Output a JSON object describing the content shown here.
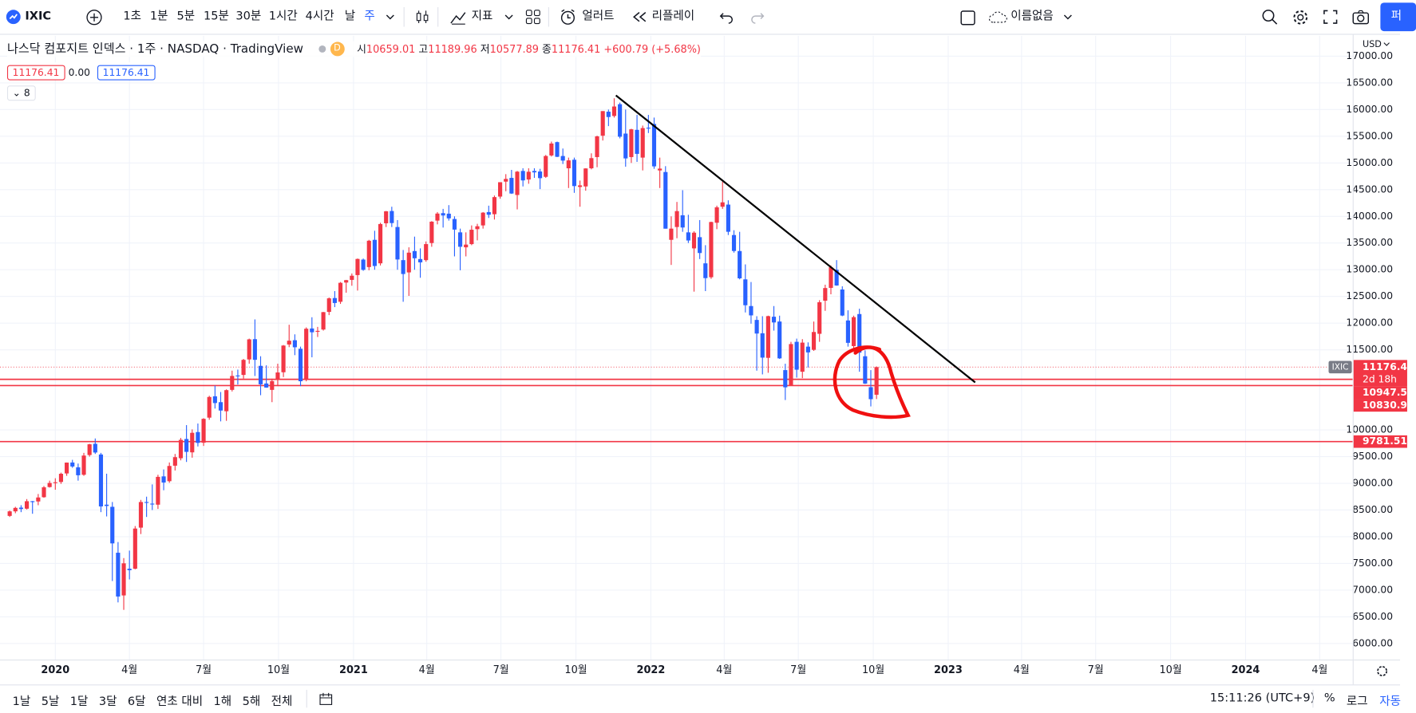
{
  "toolbar": {
    "symbol": "IXIC",
    "intervals": [
      "1초",
      "1분",
      "5분",
      "15분",
      "30분",
      "1시간",
      "4시간",
      "날",
      "주"
    ],
    "indicators": "지표",
    "alerts": "얼러트",
    "replay": "리플레이",
    "layout_name": "이름없음",
    "publish": "퍼"
  },
  "legend": {
    "title": "나스닥 컴포지트 인덱스 · 1주 · NASDAQ · TradingView",
    "badge": "D",
    "ohlc_labels": [
      "시",
      "고",
      "저",
      "종"
    ],
    "change": "+600.79 (+5.68%)",
    "bid": "11176.41",
    "spread": "0.00",
    "ask": "11176.41",
    "indicator_count": "8"
  },
  "chart_data": {
    "type": "candlestick",
    "up_color": "#f23645",
    "down_color": "#2962ff",
    "ohlc": [
      [
        8390,
        8490,
        8370,
        8475
      ],
      [
        8475,
        8560,
        8440,
        8540
      ],
      [
        8545,
        8590,
        8460,
        8519
      ],
      [
        8525,
        8705,
        8510,
        8665
      ],
      [
        8665,
        8670,
        8430,
        8656
      ],
      [
        8660,
        8800,
        8590,
        8735
      ],
      [
        8740,
        8950,
        8730,
        8925
      ],
      [
        8930,
        9050,
        8920,
        9007
      ],
      [
        9010,
        9095,
        8880,
        9020
      ],
      [
        9025,
        9200,
        8990,
        9179
      ],
      [
        9185,
        9390,
        9140,
        9388
      ],
      [
        9390,
        9440,
        9290,
        9315
      ],
      [
        9300,
        9370,
        9050,
        9151
      ],
      [
        9160,
        9570,
        9140,
        9520
      ],
      [
        9530,
        9740,
        9500,
        9731
      ],
      [
        9740,
        9840,
        9550,
        9577
      ],
      [
        9540,
        9570,
        8460,
        8567
      ],
      [
        8600,
        9180,
        8380,
        8576
      ],
      [
        8560,
        8650,
        7170,
        7875
      ],
      [
        7700,
        7900,
        6770,
        6880
      ],
      [
        6900,
        7600,
        6630,
        7502
      ],
      [
        7400,
        7740,
        7200,
        7373
      ],
      [
        7400,
        8200,
        7390,
        8153
      ],
      [
        8170,
        8690,
        8050,
        8650
      ],
      [
        8650,
        8750,
        8370,
        8634
      ],
      [
        8620,
        8980,
        8500,
        8605
      ],
      [
        8600,
        9160,
        8520,
        9121
      ],
      [
        9130,
        9260,
        8870,
        9015
      ],
      [
        9040,
        9390,
        9010,
        9325
      ],
      [
        9330,
        9550,
        9240,
        9490
      ],
      [
        9470,
        9850,
        9430,
        9814
      ],
      [
        9830,
        10090,
        9400,
        9589
      ],
      [
        9580,
        10010,
        9480,
        9946
      ],
      [
        9960,
        10120,
        9690,
        9757
      ],
      [
        9760,
        10220,
        9700,
        10208
      ],
      [
        10230,
        10640,
        10190,
        10617
      ],
      [
        10630,
        10830,
        10400,
        10503
      ],
      [
        10520,
        10710,
        10160,
        10363
      ],
      [
        10350,
        10760,
        10170,
        10745
      ],
      [
        10750,
        11110,
        10720,
        11011
      ],
      [
        11020,
        11130,
        10850,
        11019
      ],
      [
        11030,
        11330,
        10960,
        11312
      ],
      [
        11320,
        11710,
        11240,
        11696
      ],
      [
        11700,
        12070,
        11010,
        11313
      ],
      [
        11200,
        11380,
        10650,
        10854
      ],
      [
        10870,
        11210,
        10790,
        10793
      ],
      [
        10750,
        10960,
        10520,
        10914
      ],
      [
        10940,
        11240,
        10820,
        11076
      ],
      [
        11080,
        11590,
        10990,
        11580
      ],
      [
        11600,
        11970,
        11550,
        11671
      ],
      [
        11680,
        11790,
        11400,
        11548
      ],
      [
        11520,
        11560,
        10820,
        10912
      ],
      [
        10950,
        11920,
        10910,
        11895
      ],
      [
        11900,
        12110,
        11360,
        11829
      ],
      [
        11850,
        11930,
        11740,
        11855
      ],
      [
        11880,
        12210,
        11860,
        12206
      ],
      [
        12210,
        12480,
        12150,
        12464
      ],
      [
        12470,
        12600,
        12300,
        12377
      ],
      [
        12400,
        12770,
        12360,
        12755
      ],
      [
        12760,
        12810,
        12570,
        12805
      ],
      [
        12810,
        12930,
        12700,
        12888
      ],
      [
        12900,
        13210,
        12610,
        13202
      ],
      [
        13190,
        13210,
        12980,
        12998
      ],
      [
        13050,
        13560,
        12990,
        13543
      ],
      [
        13560,
        13730,
        13000,
        13070
      ],
      [
        13120,
        13880,
        13080,
        13856
      ],
      [
        13870,
        14100,
        13800,
        14095
      ],
      [
        14100,
        14180,
        13800,
        13874
      ],
      [
        13800,
        13930,
        13000,
        13192
      ],
      [
        13180,
        13370,
        12400,
        12920
      ],
      [
        12950,
        13420,
        12510,
        13320
      ],
      [
        13350,
        13620,
        13000,
        13215
      ],
      [
        13200,
        13400,
        12850,
        13138
      ],
      [
        13180,
        13530,
        13150,
        13480
      ],
      [
        13500,
        13910,
        13430,
        13900
      ],
      [
        13920,
        14080,
        13850,
        14052
      ],
      [
        14060,
        14140,
        13790,
        14016
      ],
      [
        14050,
        14210,
        13920,
        13962
      ],
      [
        13950,
        14000,
        13250,
        13752
      ],
      [
        13700,
        13770,
        12990,
        13430
      ],
      [
        13420,
        13700,
        13250,
        13471
      ],
      [
        13480,
        13830,
        13460,
        13749
      ],
      [
        13760,
        13860,
        13550,
        13814
      ],
      [
        13830,
        14080,
        13770,
        14069
      ],
      [
        14080,
        14200,
        13970,
        14030
      ],
      [
        14040,
        14390,
        13940,
        14360
      ],
      [
        14370,
        14640,
        14330,
        14639
      ],
      [
        14650,
        14790,
        14470,
        14701
      ],
      [
        14720,
        14870,
        14420,
        14427
      ],
      [
        14400,
        14850,
        14130,
        14837
      ],
      [
        14850,
        14900,
        14560,
        14673
      ],
      [
        14690,
        14900,
        14610,
        14835
      ],
      [
        14850,
        14900,
        14720,
        14823
      ],
      [
        14840,
        14890,
        14510,
        14715
      ],
      [
        14740,
        15150,
        14720,
        15130
      ],
      [
        15140,
        15400,
        15120,
        15364
      ],
      [
        15390,
        15400,
        15110,
        15115
      ],
      [
        15130,
        15270,
        14980,
        15044
      ],
      [
        14900,
        15100,
        14530,
        15048
      ],
      [
        15060,
        15100,
        14440,
        14567
      ],
      [
        14550,
        14670,
        14180,
        14580
      ],
      [
        14560,
        14900,
        14480,
        14897
      ],
      [
        14900,
        15180,
        14880,
        15090
      ],
      [
        15110,
        15510,
        14920,
        15498
      ],
      [
        15510,
        15970,
        15420,
        15971
      ],
      [
        15960,
        16000,
        15690,
        15860
      ],
      [
        15880,
        16210,
        15850,
        16057
      ],
      [
        16100,
        16130,
        15460,
        15491
      ],
      [
        15550,
        16000,
        14930,
        15085
      ],
      [
        15110,
        15640,
        15000,
        15630
      ],
      [
        15620,
        15900,
        15020,
        15170
      ],
      [
        15100,
        15700,
        14860,
        15653
      ],
      [
        15660,
        15900,
        15560,
        15645
      ],
      [
        15730,
        15850,
        14890,
        14936
      ],
      [
        14860,
        15100,
        14530,
        14894
      ],
      [
        14830,
        14940,
        13770,
        13769
      ],
      [
        13560,
        14000,
        13090,
        13770
      ],
      [
        13800,
        14270,
        13590,
        14098
      ],
      [
        14020,
        14490,
        13710,
        13791
      ],
      [
        13700,
        14030,
        13500,
        13548
      ],
      [
        13400,
        13720,
        12590,
        13694
      ],
      [
        13610,
        13930,
        13200,
        13313
      ],
      [
        13120,
        13460,
        12600,
        12843
      ],
      [
        12860,
        13900,
        12830,
        13894
      ],
      [
        13880,
        14200,
        13760,
        14169
      ],
      [
        14180,
        14650,
        14140,
        14262
      ],
      [
        14220,
        14300,
        13650,
        13711
      ],
      [
        13650,
        13740,
        13320,
        13351
      ],
      [
        13350,
        13710,
        12820,
        12839
      ],
      [
        12820,
        13100,
        12200,
        12335
      ],
      [
        12320,
        12770,
        11990,
        12145
      ],
      [
        12060,
        12130,
        11110,
        11805
      ],
      [
        11810,
        12130,
        11040,
        11354
      ],
      [
        11350,
        12140,
        11070,
        12131
      ],
      [
        12120,
        12320,
        11860,
        12013
      ],
      [
        12030,
        12140,
        11330,
        11340
      ],
      [
        11120,
        11240,
        10560,
        10798
      ],
      [
        10830,
        11650,
        10830,
        11608
      ],
      [
        11650,
        11710,
        10980,
        11128
      ],
      [
        11090,
        11700,
        10970,
        11635
      ],
      [
        11560,
        11640,
        11170,
        11452
      ],
      [
        11500,
        12030,
        11480,
        11834
      ],
      [
        11800,
        12430,
        11650,
        12391
      ],
      [
        12420,
        12720,
        12230,
        12657
      ],
      [
        12660,
        13080,
        12540,
        13047
      ],
      [
        13000,
        13180,
        12700,
        12705
      ],
      [
        12630,
        12690,
        12130,
        12142
      ],
      [
        12050,
        12240,
        11560,
        11631
      ],
      [
        11570,
        12140,
        11530,
        12112
      ],
      [
        12170,
        12270,
        11090,
        11448
      ],
      [
        11380,
        11490,
        10860,
        10868
      ],
      [
        10800,
        11120,
        10440,
        10576
      ],
      [
        10659.01,
        11189.96,
        10577.89,
        11176.41
      ]
    ],
    "xlim": [
      -1.7,
      235.5
    ],
    "xticks": [
      {
        "value": 8,
        "label": "2020"
      },
      {
        "value": 21,
        "label": "4월"
      },
      {
        "value": 34,
        "label": "7월"
      },
      {
        "value": 47.14,
        "label": "10월"
      },
      {
        "value": 60.29,
        "label": "2021"
      },
      {
        "value": 73.14,
        "label": "4월"
      },
      {
        "value": 86.14,
        "label": "7월"
      },
      {
        "value": 99.29,
        "label": "10월"
      },
      {
        "value": 112.43,
        "label": "2022"
      },
      {
        "value": 125.29,
        "label": "4월"
      },
      {
        "value": 138.29,
        "label": "7월"
      },
      {
        "value": 151.43,
        "label": "10월"
      },
      {
        "value": 164.57,
        "label": "2023"
      },
      {
        "value": 177.43,
        "label": "4월"
      },
      {
        "value": 190.43,
        "label": "7월"
      },
      {
        "value": 203.57,
        "label": "10월"
      },
      {
        "value": 216.71,
        "label": "2024"
      },
      {
        "value": 229.71,
        "label": "4월"
      }
    ],
    "ylim": [
      5700,
      17384
    ],
    "yticks": [
      {
        "value": 6000,
        "label": "6000.00"
      },
      {
        "value": 6500,
        "label": "6500.00"
      },
      {
        "value": 7000,
        "label": "7000.00"
      },
      {
        "value": 7500,
        "label": "7500.00"
      },
      {
        "value": 8000,
        "label": "8000.00"
      },
      {
        "value": 8500,
        "label": "8500.00"
      },
      {
        "value": 9000,
        "label": "9000.00"
      },
      {
        "value": 9500,
        "label": "9500.00"
      },
      {
        "value": 10000,
        "label": "10000.00"
      },
      {
        "value": 11500,
        "label": "11500.00"
      },
      {
        "value": 12000,
        "label": "12000.00"
      },
      {
        "value": 12500,
        "label": "12500.00"
      },
      {
        "value": 13000,
        "label": "13000.00"
      },
      {
        "value": 13500,
        "label": "13500.00"
      },
      {
        "value": 14000,
        "label": "14000.00"
      },
      {
        "value": 14500,
        "label": "14500.00"
      },
      {
        "value": 15000,
        "label": "15000.00"
      },
      {
        "value": 15500,
        "label": "15500.00"
      },
      {
        "value": 16000,
        "label": "16000.00"
      },
      {
        "value": 16500,
        "label": "16500.00"
      },
      {
        "value": 17000,
        "label": "17000.00"
      }
    ],
    "grid": true,
    "currency": "USD",
    "symbol_tag": "IXIC",
    "countdown": "2d 18h",
    "horizontal_lines": [
      10947.55,
      10830.94,
      9781.51
    ],
    "line_color": "#f23645",
    "trend_line": {
      "x": [
        106.3,
        169.3
      ],
      "y": [
        16265,
        10890
      ]
    }
  },
  "bottom_bar": {
    "ranges": [
      "1날",
      "5날",
      "1달",
      "3달",
      "6달",
      "연초 대비",
      "1해",
      "5해",
      "전체"
    ],
    "time": "15:11:26 (UTC+9)",
    "percent": "%",
    "log": "로그",
    "auto": "자동"
  }
}
